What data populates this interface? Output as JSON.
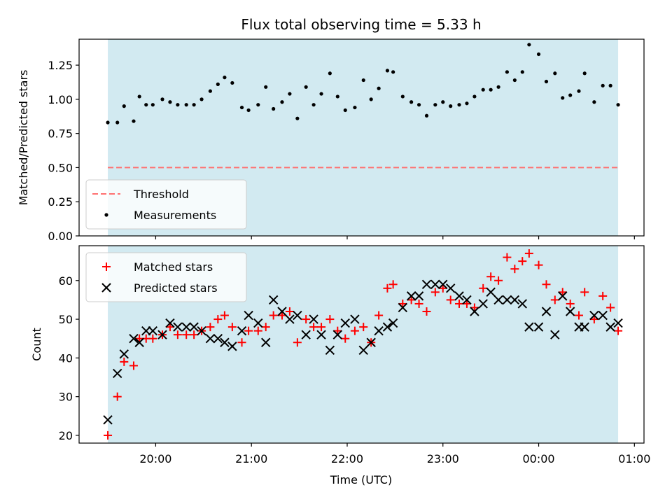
{
  "chart_data": {
    "type": "scatter",
    "title": "Flux total observing time = 5.33 h",
    "xlabel": "Time (UTC)",
    "x_axis": {
      "unit": "hours_utc",
      "range": [
        19.2,
        25.1
      ],
      "ticks": [
        {
          "value": 20,
          "label": "20:00"
        },
        {
          "value": 21,
          "label": "21:00"
        },
        {
          "value": 22,
          "label": "22:00"
        },
        {
          "value": 23,
          "label": "23:00"
        },
        {
          "value": 24,
          "label": "00:00"
        },
        {
          "value": 25,
          "label": "01:00"
        }
      ]
    },
    "shaded_span": {
      "start": 19.5,
      "end": 24.83,
      "color": "#add8e6"
    },
    "panels": [
      {
        "ylabel": "Matched/Predicted stars",
        "ylim": [
          0,
          1.44
        ],
        "yticks": [
          {
            "value": 0,
            "label": "0.00"
          },
          {
            "value": 0.25,
            "label": "0.25"
          },
          {
            "value": 0.5,
            "label": "0.50"
          },
          {
            "value": 0.75,
            "label": "0.75"
          },
          {
            "value": 1.0,
            "label": "1.00"
          },
          {
            "value": 1.25,
            "label": "1.25"
          }
        ],
        "legend_position": "lower-left",
        "threshold": {
          "name": "Threshold",
          "value": 0.5,
          "color": "#ff7070"
        },
        "series": [
          {
            "name": "Measurements",
            "marker": "dot",
            "color": "#000000",
            "x": [
              19.5,
              19.6,
              19.67,
              19.77,
              19.83,
              19.9,
              19.97,
              20.07,
              20.15,
              20.23,
              20.32,
              20.4,
              20.48,
              20.57,
              20.65,
              20.72,
              20.8,
              20.9,
              20.97,
              21.07,
              21.15,
              21.23,
              21.32,
              21.4,
              21.48,
              21.57,
              21.65,
              21.73,
              21.82,
              21.9,
              21.98,
              22.08,
              22.17,
              22.25,
              22.33,
              22.42,
              22.48,
              22.58,
              22.67,
              22.75,
              22.83,
              22.92,
              23.0,
              23.08,
              23.17,
              23.25,
              23.33,
              23.42,
              23.5,
              23.58,
              23.67,
              23.75,
              23.83,
              23.9,
              24.0,
              24.08,
              24.17,
              24.25,
              24.33,
              24.42,
              24.48,
              24.58,
              24.67,
              24.75,
              24.83
            ],
            "y": [
              0.83,
              0.83,
              0.95,
              0.84,
              1.02,
              0.96,
              0.96,
              1.0,
              0.98,
              0.96,
              0.96,
              0.96,
              1.0,
              1.06,
              1.11,
              1.16,
              1.12,
              0.94,
              0.92,
              0.96,
              1.09,
              0.93,
              0.98,
              1.04,
              0.86,
              1.09,
              0.96,
              1.04,
              1.19,
              1.02,
              0.92,
              0.94,
              1.14,
              1.0,
              1.08,
              1.21,
              1.2,
              1.02,
              0.98,
              0.96,
              0.88,
              0.96,
              0.98,
              0.95,
              0.96,
              0.97,
              1.02,
              1.07,
              1.07,
              1.09,
              1.2,
              1.14,
              1.2,
              1.4,
              1.33,
              1.13,
              1.19,
              1.01,
              1.03,
              1.06,
              1.19,
              0.98,
              1.1,
              1.1,
              0.96
            ]
          }
        ]
      },
      {
        "ylabel": "Count",
        "ylim": [
          18,
          69
        ],
        "yticks": [
          {
            "value": 20,
            "label": "20"
          },
          {
            "value": 30,
            "label": "30"
          },
          {
            "value": 40,
            "label": "40"
          },
          {
            "value": 50,
            "label": "50"
          },
          {
            "value": 60,
            "label": "60"
          }
        ],
        "legend_position": "upper-left",
        "series": [
          {
            "name": "Matched stars",
            "marker": "plus",
            "color": "#ff0000",
            "x": [
              19.5,
              19.6,
              19.67,
              19.77,
              19.83,
              19.9,
              19.97,
              20.07,
              20.15,
              20.23,
              20.32,
              20.4,
              20.48,
              20.57,
              20.65,
              20.72,
              20.8,
              20.9,
              20.97,
              21.07,
              21.15,
              21.23,
              21.32,
              21.4,
              21.48,
              21.57,
              21.65,
              21.73,
              21.82,
              21.9,
              21.98,
              22.08,
              22.17,
              22.25,
              22.33,
              22.42,
              22.48,
              22.58,
              22.67,
              22.75,
              22.83,
              22.92,
              23.0,
              23.08,
              23.17,
              23.25,
              23.33,
              23.42,
              23.5,
              23.58,
              23.67,
              23.75,
              23.83,
              23.9,
              24.0,
              24.08,
              24.17,
              24.25,
              24.33,
              24.42,
              24.48,
              24.58,
              24.67,
              24.75,
              24.83
            ],
            "y": [
              20,
              30,
              39,
              38,
              45,
              45,
              45,
              46,
              48,
              46,
              46,
              46,
              47,
              48,
              50,
              51,
              48,
              44,
              47,
              47,
              48,
              51,
              51,
              52,
              44,
              50,
              48,
              48,
              50,
              47,
              45,
              47,
              48,
              44,
              51,
              58,
              59,
              54,
              55,
              54,
              52,
              57,
              58,
              55,
              54,
              54,
              53,
              58,
              61,
              60,
              66,
              63,
              65,
              67,
              64,
              59,
              55,
              57,
              54,
              51,
              57,
              50,
              56,
              53,
              47
            ]
          },
          {
            "name": "Predicted stars",
            "marker": "x",
            "color": "#000000",
            "x": [
              19.5,
              19.6,
              19.67,
              19.77,
              19.83,
              19.9,
              19.97,
              20.07,
              20.15,
              20.23,
              20.32,
              20.4,
              20.48,
              20.57,
              20.65,
              20.72,
              20.8,
              20.9,
              20.97,
              21.07,
              21.15,
              21.23,
              21.32,
              21.4,
              21.48,
              21.57,
              21.65,
              21.73,
              21.82,
              21.9,
              21.98,
              22.08,
              22.17,
              22.25,
              22.33,
              22.42,
              22.48,
              22.58,
              22.67,
              22.75,
              22.83,
              22.92,
              23.0,
              23.08,
              23.17,
              23.25,
              23.33,
              23.42,
              23.5,
              23.58,
              23.67,
              23.75,
              23.83,
              23.9,
              24.0,
              24.08,
              24.17,
              24.25,
              24.33,
              24.42,
              24.48,
              24.58,
              24.67,
              24.75,
              24.83
            ],
            "y": [
              24,
              36,
              41,
              45,
              44,
              47,
              47,
              46,
              49,
              48,
              48,
              48,
              47,
              45,
              45,
              44,
              43,
              47,
              51,
              49,
              44,
              55,
              52,
              50,
              51,
              46,
              50,
              46,
              42,
              46,
              49,
              50,
              42,
              44,
              47,
              48,
              49,
              53,
              56,
              56,
              59,
              59,
              59,
              58,
              56,
              55,
              52,
              54,
              57,
              55,
              55,
              55,
              54,
              48,
              48,
              52,
              46,
              56,
              52,
              48,
              48,
              51,
              51,
              48,
              49
            ]
          }
        ]
      }
    ]
  }
}
